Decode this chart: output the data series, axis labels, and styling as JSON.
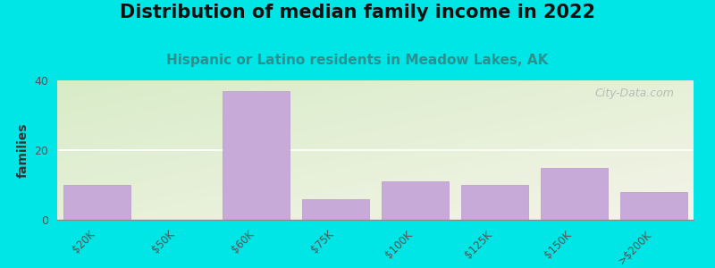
{
  "title": "Distribution of median family income in 2022",
  "subtitle": "Hispanic or Latino residents in Meadow Lakes, AK",
  "categories": [
    "$20K",
    "$50K",
    "$60K",
    "$75K",
    "$100K",
    "$125K",
    "$150K",
    ">$200K"
  ],
  "values": [
    10,
    0,
    37,
    6,
    11,
    10,
    15,
    8
  ],
  "bar_color": "#c8aad8",
  "bar_edge_color": "#b898cc",
  "bg_color_topleft": "#d8ecc8",
  "bg_color_bottomright": "#f4f4e8",
  "outer_bg": "#00e5e5",
  "ylabel": "families",
  "ylim": [
    0,
    40
  ],
  "yticks": [
    0,
    20,
    40
  ],
  "title_fontsize": 15,
  "subtitle_fontsize": 11,
  "subtitle_color": "#2a9090",
  "watermark_text": "City-Data.com",
  "grid_color": "#e0e8d0",
  "tick_label_color": "#555555",
  "ylabel_color": "#333333"
}
